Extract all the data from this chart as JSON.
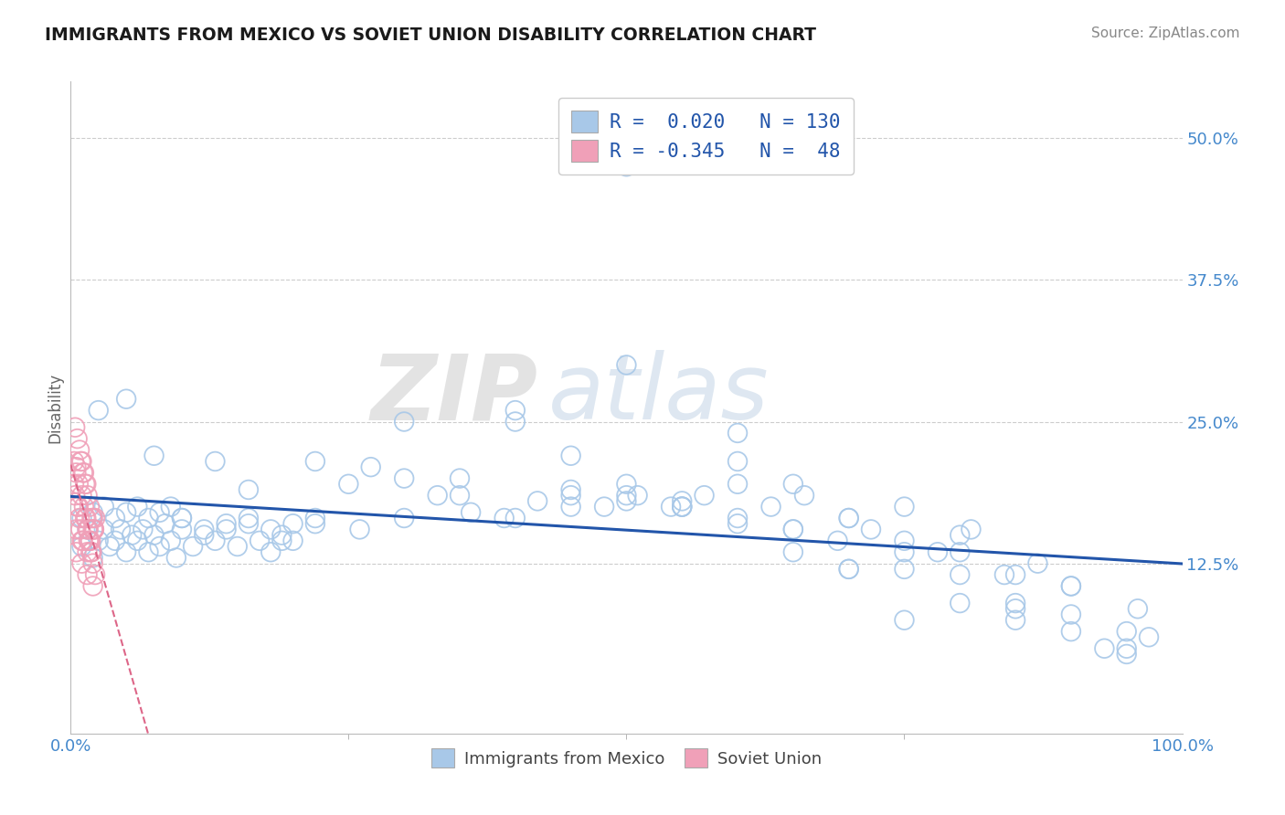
{
  "title": "IMMIGRANTS FROM MEXICO VS SOVIET UNION DISABILITY CORRELATION CHART",
  "source": "Source: ZipAtlas.com",
  "ylabel": "Disability",
  "xlim": [
    0.0,
    1.0
  ],
  "ylim": [
    -0.025,
    0.55
  ],
  "yticks": [
    0.125,
    0.25,
    0.375,
    0.5
  ],
  "ytick_labels": [
    "12.5%",
    "25.0%",
    "37.5%",
    "50.0%"
  ],
  "xtick_left": "0.0%",
  "xtick_right": "100.0%",
  "legend_r_blue": " 0.020",
  "legend_n_blue": "130",
  "legend_r_pink": "-0.345",
  "legend_n_pink": " 48",
  "blue_color": "#A8C8E8",
  "pink_color": "#F0A0B8",
  "line_blue_color": "#2255AA",
  "line_pink_color": "#DD6688",
  "title_color": "#1a1a1a",
  "source_color": "#888888",
  "axis_color": "#4488CC",
  "ylabel_color": "#666666",
  "grid_color": "#CCCCCC",
  "legend_text_color": "#2255AA",
  "bottom_legend_color": "#444444",
  "blue_scatter_x": [
    0.01,
    0.015,
    0.02,
    0.025,
    0.03,
    0.035,
    0.04,
    0.045,
    0.05,
    0.055,
    0.06,
    0.065,
    0.07,
    0.075,
    0.08,
    0.085,
    0.09,
    0.095,
    0.1,
    0.11,
    0.12,
    0.13,
    0.14,
    0.15,
    0.16,
    0.17,
    0.18,
    0.19,
    0.2,
    0.22,
    0.01,
    0.02,
    0.03,
    0.04,
    0.05,
    0.06,
    0.07,
    0.08,
    0.09,
    0.1,
    0.12,
    0.14,
    0.16,
    0.18,
    0.2,
    0.22,
    0.25,
    0.27,
    0.3,
    0.33,
    0.36,
    0.39,
    0.42,
    0.45,
    0.48,
    0.51,
    0.54,
    0.57,
    0.6,
    0.63,
    0.66,
    0.69,
    0.72,
    0.75,
    0.78,
    0.81,
    0.84,
    0.87,
    0.9,
    0.93,
    0.96,
    0.025,
    0.05,
    0.075,
    0.1,
    0.13,
    0.16,
    0.19,
    0.22,
    0.26,
    0.3,
    0.35,
    0.4,
    0.45,
    0.5,
    0.55,
    0.6,
    0.65,
    0.7,
    0.75,
    0.8,
    0.85,
    0.9,
    0.95,
    0.3,
    0.4,
    0.5,
    0.6,
    0.7,
    0.8,
    0.35,
    0.45,
    0.55,
    0.65,
    0.75,
    0.85,
    0.95,
    0.4,
    0.5,
    0.6,
    0.7,
    0.8,
    0.9,
    0.5,
    0.6,
    0.7,
    0.8,
    0.9,
    0.97,
    0.55,
    0.65,
    0.75,
    0.85,
    0.45,
    0.55,
    0.65,
    0.75,
    0.85,
    0.95,
    0.5
  ],
  "blue_scatter_y": [
    0.14,
    0.155,
    0.13,
    0.145,
    0.155,
    0.14,
    0.145,
    0.155,
    0.135,
    0.15,
    0.145,
    0.155,
    0.135,
    0.15,
    0.14,
    0.16,
    0.145,
    0.13,
    0.155,
    0.14,
    0.15,
    0.145,
    0.155,
    0.14,
    0.16,
    0.145,
    0.135,
    0.15,
    0.145,
    0.16,
    0.165,
    0.17,
    0.175,
    0.165,
    0.17,
    0.175,
    0.165,
    0.17,
    0.175,
    0.165,
    0.155,
    0.16,
    0.165,
    0.155,
    0.16,
    0.165,
    0.195,
    0.21,
    0.2,
    0.185,
    0.17,
    0.165,
    0.18,
    0.19,
    0.175,
    0.185,
    0.175,
    0.185,
    0.165,
    0.175,
    0.185,
    0.145,
    0.155,
    0.145,
    0.135,
    0.155,
    0.115,
    0.125,
    0.105,
    0.05,
    0.085,
    0.26,
    0.27,
    0.22,
    0.165,
    0.215,
    0.19,
    0.145,
    0.215,
    0.155,
    0.165,
    0.185,
    0.165,
    0.175,
    0.185,
    0.175,
    0.195,
    0.135,
    0.165,
    0.175,
    0.135,
    0.115,
    0.105,
    0.045,
    0.25,
    0.26,
    0.195,
    0.215,
    0.12,
    0.09,
    0.2,
    0.22,
    0.18,
    0.195,
    0.12,
    0.09,
    0.065,
    0.25,
    0.3,
    0.24,
    0.165,
    0.15,
    0.065,
    0.18,
    0.16,
    0.12,
    0.115,
    0.08,
    0.06,
    0.175,
    0.155,
    0.075,
    0.075,
    0.185,
    0.175,
    0.155,
    0.135,
    0.085,
    0.05,
    0.475
  ],
  "pink_scatter_x": [
    0.003,
    0.005,
    0.007,
    0.009,
    0.011,
    0.013,
    0.015,
    0.017,
    0.019,
    0.021,
    0.004,
    0.006,
    0.008,
    0.01,
    0.012,
    0.014,
    0.016,
    0.018,
    0.02,
    0.022,
    0.003,
    0.005,
    0.007,
    0.009,
    0.011,
    0.013,
    0.015,
    0.017,
    0.019,
    0.021,
    0.004,
    0.006,
    0.008,
    0.01,
    0.012,
    0.014,
    0.016,
    0.018,
    0.02,
    0.022,
    0.005,
    0.01,
    0.015,
    0.02,
    0.005,
    0.01,
    0.015,
    0.02
  ],
  "pink_scatter_y": [
    0.195,
    0.21,
    0.175,
    0.155,
    0.145,
    0.165,
    0.155,
    0.145,
    0.135,
    0.155,
    0.185,
    0.175,
    0.165,
    0.185,
    0.175,
    0.165,
    0.155,
    0.145,
    0.155,
    0.165,
    0.215,
    0.205,
    0.195,
    0.215,
    0.205,
    0.195,
    0.185,
    0.175,
    0.165,
    0.155,
    0.245,
    0.235,
    0.225,
    0.215,
    0.205,
    0.195,
    0.145,
    0.135,
    0.125,
    0.115,
    0.135,
    0.125,
    0.115,
    0.105,
    0.155,
    0.145,
    0.135,
    0.165
  ],
  "watermark_zip": "ZIP",
  "watermark_atlas": "atlas"
}
